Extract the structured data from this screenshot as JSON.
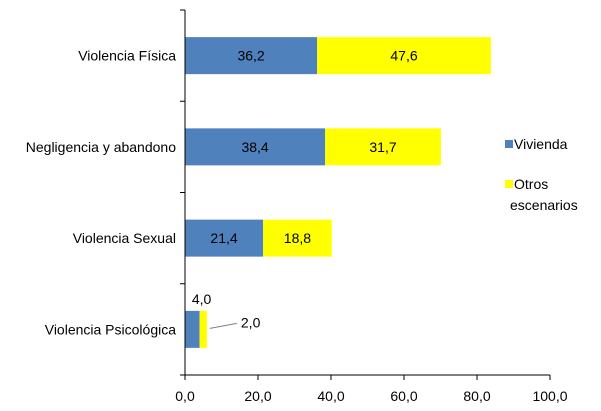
{
  "chart_data": {
    "type": "bar",
    "orientation": "horizontal",
    "stacked": true,
    "categories": [
      "Violencia Física",
      "Negligencia y abandono",
      "Violencia Sexual",
      "Violencia Psicológica"
    ],
    "series": [
      {
        "name": "Vivienda",
        "values": [
          36.2,
          38.4,
          21.4,
          4.0
        ],
        "labels": [
          "36,2",
          "38,4",
          "21,4",
          "4,0"
        ],
        "color": "#4F81BD"
      },
      {
        "name": "Otros escenarios",
        "legend_lines": [
          "Otros",
          "escenarios"
        ],
        "values": [
          47.6,
          31.7,
          18.8,
          2.0
        ],
        "labels": [
          "47,6",
          "31,7",
          "18,8",
          "2,0"
        ],
        "color": "#FFFF00"
      }
    ],
    "title": "",
    "xlabel": "",
    "ylabel": "",
    "xlim": [
      0,
      100
    ],
    "xticks": [
      0,
      20,
      40,
      60,
      80,
      100
    ],
    "xtick_labels": [
      "0,0",
      "20,0",
      "40,0",
      "60,0",
      "80,0",
      "100,0"
    ],
    "grid": false,
    "legend_position": "right"
  }
}
